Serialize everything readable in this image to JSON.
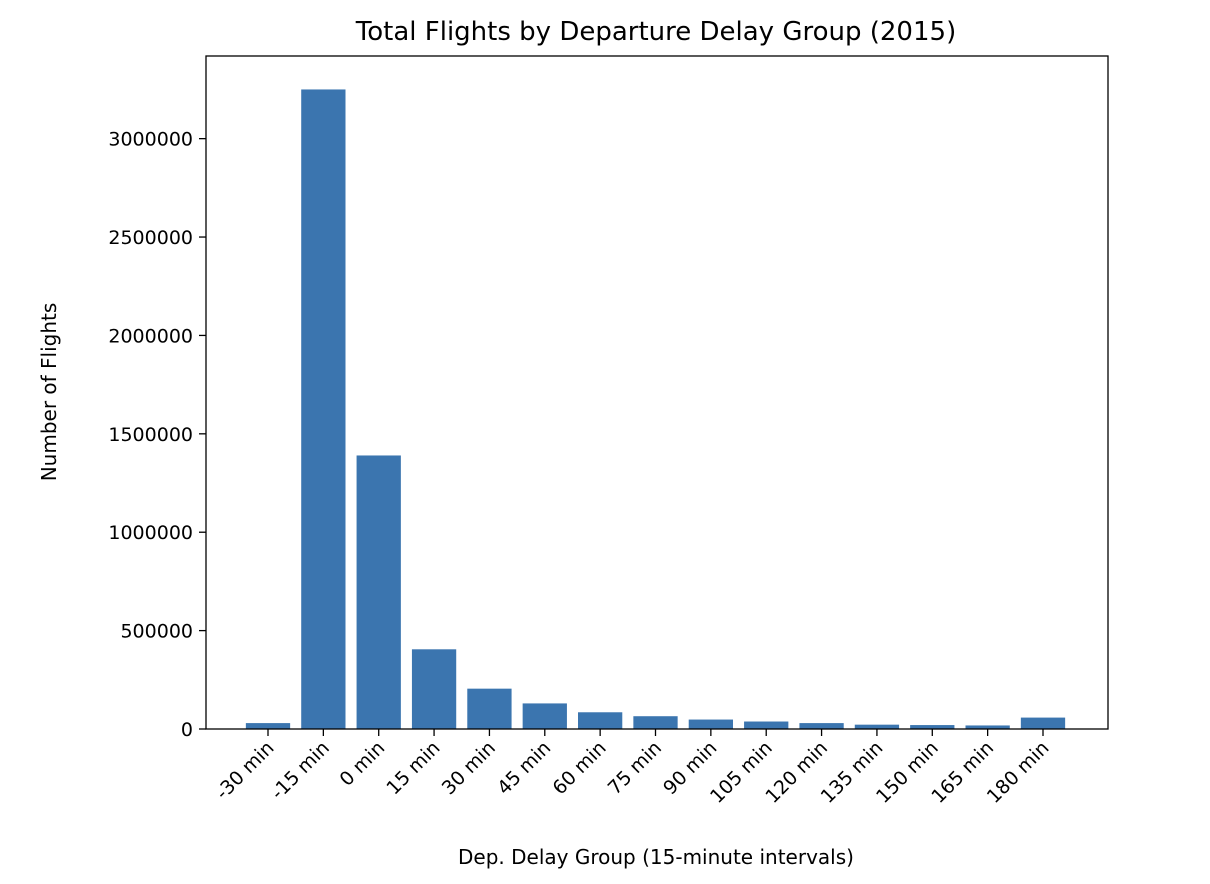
{
  "chart_data": {
    "type": "bar",
    "title": "Total Flights by Departure Delay Group (2015)",
    "xlabel": "Dep. Delay Group (15-minute intervals)",
    "ylabel": "Number of Flights",
    "categories": [
      "-30 min",
      "-15 min",
      "0 min",
      "15 min",
      "30 min",
      "45 min",
      "60 min",
      "75 min",
      "90 min",
      "105 min",
      "120 min",
      "135 min",
      "150 min",
      "165 min",
      "180 min"
    ],
    "values": [
      30000,
      3250000,
      1390000,
      405000,
      205000,
      130000,
      85000,
      65000,
      48000,
      38000,
      30000,
      22000,
      20000,
      18000,
      58000
    ],
    "ylim": [
      0,
      3420000
    ],
    "yticks": [
      0,
      500000,
      1000000,
      1500000,
      2000000,
      2500000,
      3000000
    ],
    "ytick_labels": [
      "0",
      "500000",
      "1000000",
      "1500000",
      "2000000",
      "2500000",
      "3000000"
    ],
    "bar_color": "#3b75af",
    "grid": false,
    "legend": "none"
  }
}
